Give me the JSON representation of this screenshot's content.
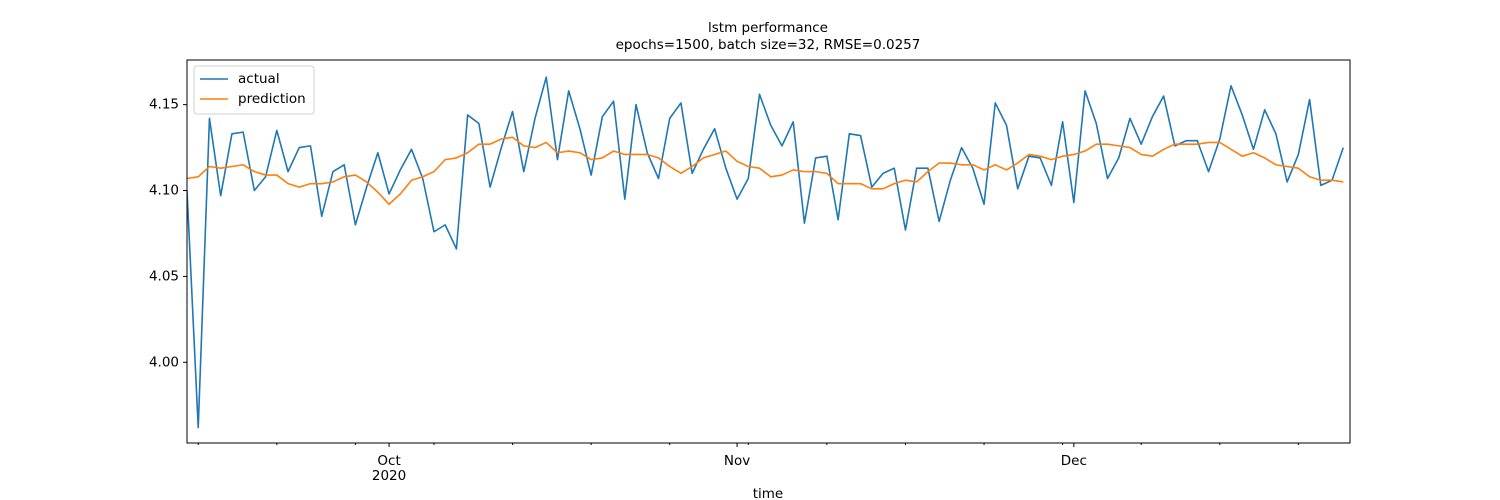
{
  "chart_data": {
    "type": "line",
    "title": "lstm performance",
    "subtitle": "epochs=1500, batch size=32, RMSE=0.0257",
    "x_label": "time",
    "x": [
      0,
      1,
      2,
      3,
      4,
      5,
      6,
      7,
      8,
      9,
      10,
      11,
      12,
      13,
      14,
      15,
      16,
      17,
      18,
      19,
      20,
      21,
      22,
      23,
      24,
      25,
      26,
      27,
      28,
      29,
      30,
      31,
      32,
      33,
      34,
      35,
      36,
      37,
      38,
      39,
      40,
      41,
      42,
      43,
      44,
      45,
      46,
      47,
      48,
      49,
      50,
      51,
      52,
      53,
      54,
      55,
      56,
      57,
      58,
      59,
      60,
      61,
      62,
      63,
      64,
      65,
      66,
      67,
      68,
      69,
      70,
      71,
      72,
      73,
      74,
      75,
      76,
      77,
      78,
      79,
      80,
      81,
      82,
      83,
      84,
      85,
      86,
      87,
      88,
      89,
      90,
      91,
      92,
      93,
      94,
      95,
      96,
      97,
      98,
      99,
      100,
      101,
      102,
      103
    ],
    "series": [
      {
        "name": "actual",
        "color": "#1f77b4",
        "values": [
          4.1,
          3.962,
          4.142,
          4.097,
          4.133,
          4.134,
          4.1,
          4.108,
          4.135,
          4.111,
          4.125,
          4.126,
          4.085,
          4.111,
          4.115,
          4.08,
          4.102,
          4.122,
          4.098,
          4.112,
          4.124,
          4.107,
          4.076,
          4.08,
          4.066,
          4.144,
          4.139,
          4.102,
          4.125,
          4.146,
          4.111,
          4.142,
          4.166,
          4.118,
          4.158,
          4.136,
          4.109,
          4.143,
          4.152,
          4.095,
          4.15,
          4.122,
          4.107,
          4.142,
          4.151,
          4.11,
          4.124,
          4.136,
          4.113,
          4.095,
          4.107,
          4.156,
          4.138,
          4.126,
          4.14,
          4.081,
          4.119,
          4.12,
          4.083,
          4.133,
          4.132,
          4.102,
          4.11,
          4.113,
          4.077,
          4.113,
          4.113,
          4.082,
          4.106,
          4.125,
          4.113,
          4.092,
          4.151,
          4.138,
          4.101,
          4.12,
          4.119,
          4.103,
          4.14,
          4.093,
          4.158,
          4.139,
          4.107,
          4.119,
          4.142,
          4.127,
          4.143,
          4.155,
          4.126,
          4.129,
          4.129,
          4.111,
          4.13,
          4.161,
          4.144,
          4.124,
          4.147,
          4.133,
          4.105,
          4.121,
          4.153,
          4.103,
          4.106,
          4.125
        ]
      },
      {
        "name": "prediction",
        "color": "#ff7f0e",
        "values": [
          4.107,
          4.108,
          4.114,
          4.113,
          4.114,
          4.115,
          4.111,
          4.109,
          4.109,
          4.104,
          4.102,
          4.104,
          4.104,
          4.105,
          4.108,
          4.109,
          4.105,
          4.099,
          4.092,
          4.098,
          4.106,
          4.108,
          4.111,
          4.118,
          4.119,
          4.122,
          4.127,
          4.127,
          4.13,
          4.131,
          4.126,
          4.125,
          4.128,
          4.122,
          4.123,
          4.122,
          4.118,
          4.119,
          4.123,
          4.121,
          4.121,
          4.121,
          4.119,
          4.114,
          4.11,
          4.114,
          4.119,
          4.121,
          4.123,
          4.117,
          4.114,
          4.113,
          4.108,
          4.109,
          4.112,
          4.111,
          4.111,
          4.11,
          4.104,
          4.104,
          4.104,
          4.101,
          4.101,
          4.104,
          4.106,
          4.105,
          4.111,
          4.116,
          4.116,
          4.115,
          4.115,
          4.112,
          4.115,
          4.112,
          4.116,
          4.121,
          4.12,
          4.118,
          4.12,
          4.121,
          4.123,
          4.127,
          4.127,
          4.126,
          4.125,
          4.121,
          4.12,
          4.124,
          4.127,
          4.127,
          4.127,
          4.128,
          4.128,
          4.124,
          4.12,
          4.122,
          4.119,
          4.115,
          4.114,
          4.113,
          4.108,
          4.106,
          4.106,
          4.105
        ]
      }
    ],
    "xlim": [
      0,
      103.6
    ],
    "xticks": [
      {
        "value": 18,
        "label": "Oct\n2020"
      },
      {
        "value": 49,
        "label": "Nov"
      },
      {
        "value": 79,
        "label": "Dec"
      }
    ],
    "xminorticks": [
      1,
      8,
      15,
      22,
      29,
      36,
      43,
      50,
      57,
      64,
      71,
      78,
      85,
      92,
      99
    ],
    "ylim": [
      3.953,
      4.176
    ],
    "yticks": [
      {
        "value": 4,
        "label": "4.00"
      },
      4.05,
      {
        "value": 4.1,
        "label": "4.10"
      },
      4.15
    ],
    "legend": "upper left",
    "grid": false
  }
}
